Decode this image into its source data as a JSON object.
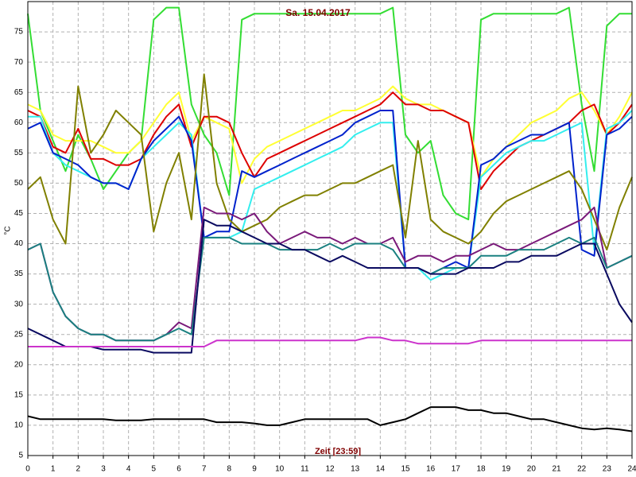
{
  "chart_data": {
    "type": "line",
    "title": "Sa. 15.04.2017",
    "x_label": "Zeit [23:59]",
    "y_label": "°C",
    "x": [
      0,
      0.5,
      1,
      1.5,
      2,
      2.5,
      3,
      3.5,
      4,
      4.5,
      5,
      5.5,
      6,
      6.5,
      7,
      7.5,
      8,
      8.5,
      9,
      9.5,
      10,
      10.5,
      11,
      11.5,
      12,
      12.5,
      13,
      13.5,
      14,
      14.5,
      15,
      15.5,
      16,
      16.5,
      17,
      17.5,
      18,
      18.5,
      19,
      19.5,
      20,
      20.5,
      21,
      21.5,
      22,
      22.5,
      23,
      23.5,
      24
    ],
    "xlim": [
      0,
      24
    ],
    "xticks": [
      0,
      1,
      2,
      3,
      4,
      5,
      6,
      7,
      8,
      9,
      10,
      11,
      12,
      13,
      14,
      15,
      16,
      17,
      18,
      19,
      20,
      21,
      22,
      23,
      24
    ],
    "ylim": [
      5,
      80
    ],
    "yticks": [
      5,
      10,
      15,
      20,
      25,
      30,
      35,
      40,
      45,
      50,
      55,
      60,
      65,
      70,
      75
    ],
    "grid": true,
    "series": [
      {
        "color": "#33dd33",
        "values": [
          78,
          62,
          57,
          52,
          58,
          54,
          49,
          52,
          55,
          57,
          77,
          79,
          79,
          63,
          58,
          55,
          48,
          77,
          78,
          78,
          78,
          78,
          78,
          78,
          78,
          78,
          78,
          78,
          78,
          79,
          58,
          55,
          57,
          48,
          45,
          44,
          77,
          78,
          78,
          78,
          78,
          78,
          78,
          79,
          63,
          52,
          76,
          78,
          78
        ]
      },
      {
        "color": "#ffff33",
        "values": [
          63,
          62,
          58,
          57,
          57,
          57,
          56,
          55,
          55,
          57,
          60,
          63,
          65,
          57,
          61,
          60,
          59,
          50,
          54,
          56,
          57,
          58,
          59,
          60,
          61,
          62,
          62,
          63,
          64,
          66,
          64,
          63,
          63,
          62,
          61,
          60,
          51,
          54,
          56,
          58,
          60,
          61,
          62,
          64,
          65,
          62,
          58,
          61,
          65
        ]
      },
      {
        "color": "#dd0000",
        "values": [
          62,
          61,
          56,
          55,
          59,
          54,
          54,
          53,
          53,
          54,
          58,
          61,
          63,
          56,
          61,
          61,
          60,
          55,
          51,
          54,
          55,
          56,
          57,
          58,
          59,
          60,
          61,
          62,
          63,
          65,
          63,
          63,
          62,
          62,
          61,
          60,
          49,
          52,
          54,
          56,
          57,
          58,
          59,
          60,
          62,
          63,
          58,
          60,
          63
        ]
      },
      {
        "color": "#33eeee",
        "values": [
          61,
          61,
          55,
          53,
          52,
          51,
          50,
          50,
          49,
          54,
          56,
          58,
          60,
          58,
          41,
          41,
          41,
          42,
          49,
          50,
          51,
          52,
          53,
          54,
          55,
          56,
          58,
          59,
          60,
          60,
          36,
          36,
          34,
          35,
          36,
          36,
          51,
          53,
          55,
          56,
          57,
          57,
          58,
          59,
          60,
          39,
          59,
          60,
          62
        ]
      },
      {
        "color": "#0022cc",
        "values": [
          59,
          60,
          55,
          54,
          53,
          51,
          50,
          50,
          49,
          54,
          57,
          59,
          61,
          57,
          41,
          42,
          42,
          52,
          51,
          52,
          53,
          54,
          55,
          56,
          57,
          58,
          60,
          61,
          62,
          62,
          36,
          36,
          35,
          36,
          37,
          36,
          53,
          54,
          56,
          57,
          58,
          58,
          59,
          60,
          39,
          38,
          58,
          59,
          61
        ]
      },
      {
        "color": "#808000",
        "values": [
          49,
          51,
          44,
          40,
          66,
          55,
          58,
          62,
          60,
          58,
          42,
          50,
          55,
          44,
          68,
          50,
          44,
          42,
          43,
          44,
          46,
          47,
          48,
          48,
          49,
          50,
          50,
          51,
          52,
          53,
          41,
          57,
          44,
          42,
          41,
          40,
          42,
          45,
          47,
          48,
          49,
          50,
          51,
          52,
          49,
          44,
          39,
          46,
          51
        ]
      },
      {
        "color": "#7a1a7a",
        "values": [
          39,
          40,
          32,
          28,
          26,
          25,
          25,
          24,
          24,
          24,
          24,
          25,
          27,
          26,
          46,
          45,
          45,
          44,
          45,
          42,
          40,
          41,
          42,
          41,
          41,
          40,
          41,
          40,
          40,
          41,
          37,
          38,
          38,
          37,
          38,
          38,
          39,
          40,
          39,
          39,
          40,
          41,
          42,
          43,
          44,
          46,
          36,
          37,
          38
        ]
      },
      {
        "color": "#1a8080",
        "values": [
          39,
          40,
          32,
          28,
          26,
          25,
          25,
          24,
          24,
          24,
          24,
          25,
          26,
          25,
          41,
          41,
          41,
          40,
          40,
          40,
          39,
          39,
          39,
          39,
          40,
          39,
          40,
          40,
          40,
          39,
          36,
          36,
          35,
          36,
          36,
          36,
          38,
          38,
          38,
          39,
          39,
          39,
          40,
          41,
          40,
          41,
          36,
          37,
          38
        ]
      },
      {
        "color": "#0a0a60",
        "values": [
          26,
          25,
          24,
          23,
          23,
          23,
          22.5,
          22.5,
          22.5,
          22.5,
          22,
          22,
          22,
          22,
          44,
          43,
          43,
          42,
          41,
          40,
          40,
          39,
          39,
          38,
          37,
          38,
          37,
          36,
          36,
          36,
          36,
          36,
          35,
          35,
          35,
          36,
          36,
          36,
          37,
          37,
          38,
          38,
          38,
          39,
          40,
          40,
          35,
          30,
          27
        ]
      },
      {
        "color": "#cc33cc",
        "values": [
          23,
          23,
          23,
          23,
          23,
          23,
          23,
          23,
          23,
          23,
          23,
          23,
          23,
          23,
          23,
          24,
          24,
          24,
          24,
          24,
          24,
          24,
          24,
          24,
          24,
          24,
          24,
          24.5,
          24.5,
          24,
          24,
          23.5,
          23.5,
          23.5,
          23.5,
          23.5,
          24,
          24,
          24,
          24,
          24,
          24,
          24,
          24,
          24,
          24,
          24,
          24,
          24
        ]
      },
      {
        "color": "#000000",
        "values": [
          11.5,
          11,
          11,
          11,
          11,
          11,
          11,
          10.8,
          10.8,
          10.8,
          11,
          11,
          11,
          11,
          11,
          10.5,
          10.5,
          10.5,
          10.3,
          10,
          10,
          10.5,
          11,
          11,
          11,
          11,
          11,
          11,
          10,
          10.5,
          11,
          12,
          13,
          13,
          13,
          12.5,
          12.5,
          12,
          12,
          11.5,
          11,
          11,
          10.5,
          10,
          9.5,
          9.3,
          9.5,
          9.3,
          9
        ]
      }
    ]
  }
}
